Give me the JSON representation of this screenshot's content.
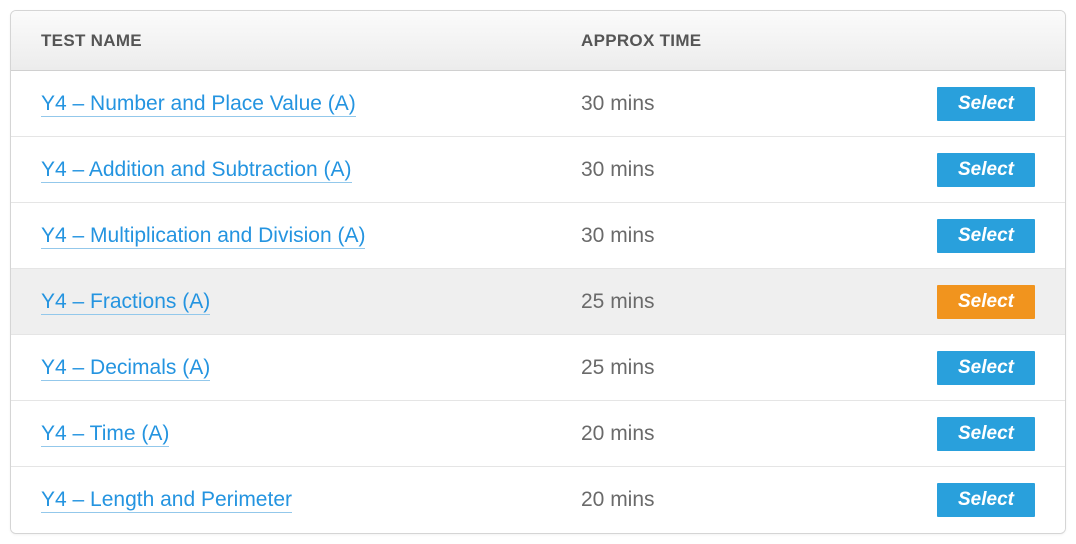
{
  "table": {
    "headers": {
      "name": "TEST NAME",
      "time": "APPROX TIME"
    },
    "button_label": "Select",
    "rows": [
      {
        "name": "Y4 – Number and Place Value (A)",
        "time": "30 mins",
        "highlighted": false,
        "btn_color": "blue"
      },
      {
        "name": "Y4 – Addition and Subtraction (A)",
        "time": "30 mins",
        "highlighted": false,
        "btn_color": "blue"
      },
      {
        "name": "Y4 – Multiplication and Division (A)",
        "time": "30 mins",
        "highlighted": false,
        "btn_color": "blue"
      },
      {
        "name": "Y4 – Fractions (A)",
        "time": "25 mins",
        "highlighted": true,
        "btn_color": "orange"
      },
      {
        "name": "Y4 – Decimals (A)",
        "time": "25 mins",
        "highlighted": false,
        "btn_color": "blue"
      },
      {
        "name": "Y4 – Time (A)",
        "time": "20 mins",
        "highlighted": false,
        "btn_color": "blue"
      },
      {
        "name": "Y4 – Length and Perimeter",
        "time": "20 mins",
        "highlighted": false,
        "btn_color": "blue"
      }
    ]
  },
  "colors": {
    "link": "#2494e0",
    "link_underline": "#93c8eb",
    "header_text": "#555555",
    "time_text": "#6a6a6a",
    "btn_blue": "#29a0dc",
    "btn_orange": "#f1941e",
    "row_highlight": "#efefef",
    "border": "#d5d5d5"
  }
}
